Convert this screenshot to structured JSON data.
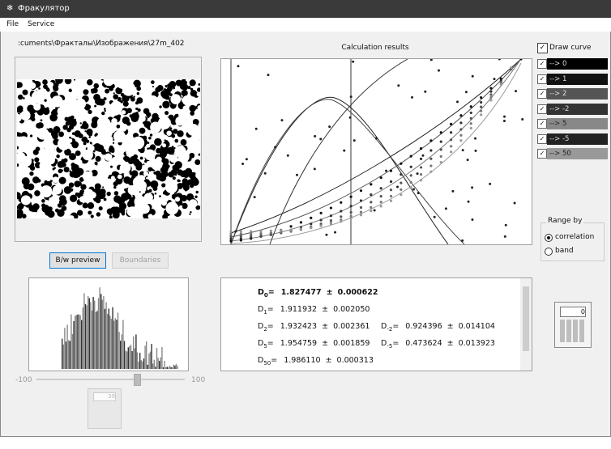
{
  "window": {
    "title": "Фракулятор"
  },
  "menu": [
    "File",
    "Service"
  ],
  "path": ":cuments\\Фракталы\\Изображения\\27m_402",
  "buttons": {
    "preview": "B/w preview",
    "boundaries": "Boundaries"
  },
  "slider": {
    "min_label": "-100",
    "max_label": "100"
  },
  "plot": {
    "title": "Calculation results"
  },
  "draw_curve": "Draw curve",
  "curves": [
    "-->  0",
    "-->  1",
    "-->  2",
    "-->  -2",
    "-->  5",
    "-->  -5",
    "-->  50"
  ],
  "results": [
    {
      "symbol": "D",
      "sub": "0",
      "eq": "=",
      "value": "1.827477",
      "pm": "±",
      "error": "0.000622"
    },
    {
      "symbol": "D",
      "sub": "1",
      "eq": "=",
      "value": "1.911932",
      "pm": "±",
      "error": "0.002050"
    },
    {
      "symbol": "D",
      "sub": "2",
      "eq": "=",
      "value": "1.932423",
      "pm": "±",
      "error": "0.002361"
    },
    {
      "symbol": "D",
      "sub": "5",
      "eq": "=",
      "value": "1.954759",
      "pm": "±",
      "error": "0.001859"
    },
    {
      "symbol": "D",
      "sub": "50",
      "eq": "=",
      "value": "1.986110",
      "pm": "±",
      "error": "0.000313"
    },
    {
      "symbol": "D",
      "sub": "-2",
      "eq": "=",
      "value": "0.924396",
      "pm": "±",
      "error": "0.014104"
    },
    {
      "symbol": "D",
      "sub": "-5",
      "eq": "=",
      "value": "0.473624",
      "pm": "±",
      "error": "0.013923"
    }
  ],
  "range_by": {
    "title": "Range by",
    "options": [
      "correlation",
      "band"
    ]
  },
  "calculator": {
    "display": "0",
    "disabled_display": "39"
  }
}
